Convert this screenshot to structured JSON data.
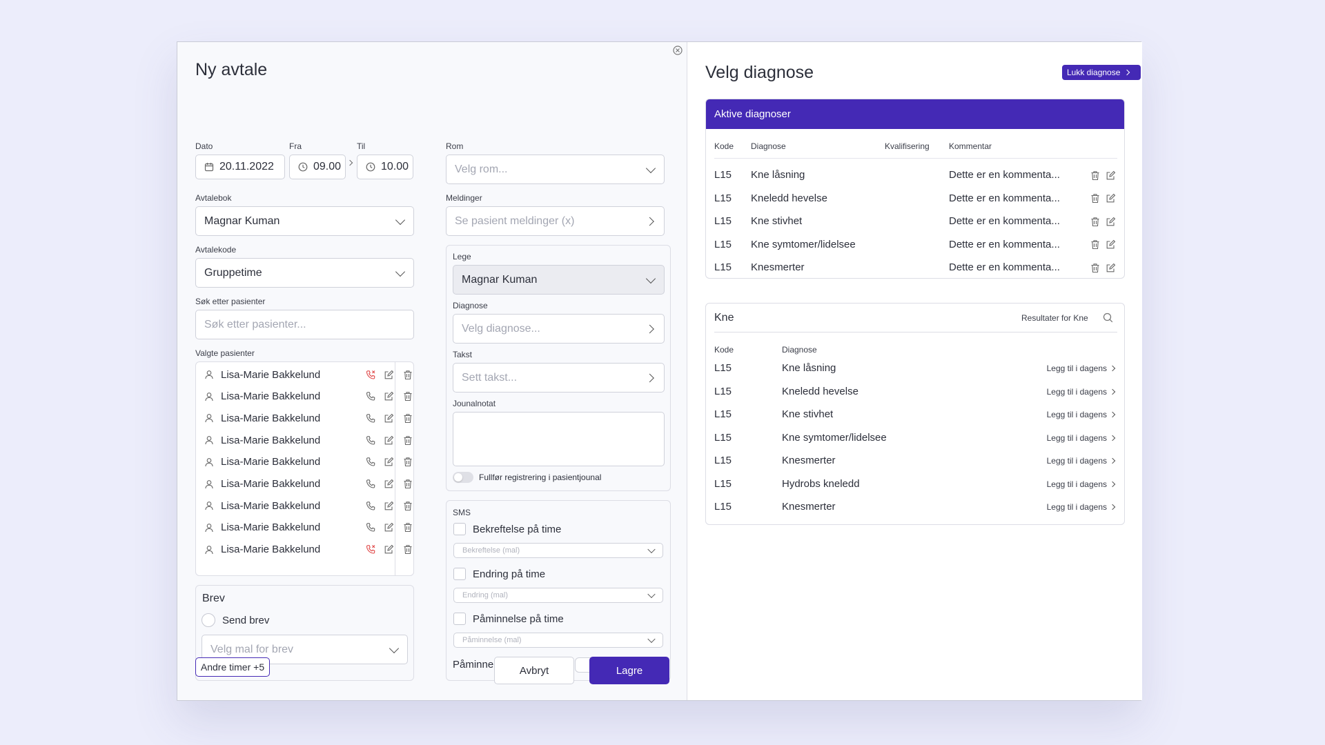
{
  "form": {
    "title": "Ny avtale",
    "date_label": "Dato",
    "date_value": "20.11.2022",
    "from_label": "Fra",
    "from_value": "09.00",
    "to_label": "Til",
    "to_value": "10.00",
    "appointment_book_label": "Avtalebok",
    "appointment_book_value": "Magnar Kuman",
    "appointment_code_label": "Avtalekode",
    "appointment_code_value": "Gruppetime",
    "search_patients_label": "Søk etter pasienter",
    "search_patients_placeholder": "Søk etter pasienter...",
    "selected_patients_label": "Valgte pasienter",
    "patients": [
      {
        "name": "Lisa-Marie Bakkelund",
        "phone_status": "blocked"
      },
      {
        "name": "Lisa-Marie Bakkelund",
        "phone_status": "ok"
      },
      {
        "name": "Lisa-Marie Bakkelund",
        "phone_status": "ok"
      },
      {
        "name": "Lisa-Marie Bakkelund",
        "phone_status": "ok"
      },
      {
        "name": "Lisa-Marie Bakkelund",
        "phone_status": "ok"
      },
      {
        "name": "Lisa-Marie Bakkelund",
        "phone_status": "ok"
      },
      {
        "name": "Lisa-Marie Bakkelund",
        "phone_status": "ok"
      },
      {
        "name": "Lisa-Marie Bakkelund",
        "phone_status": "ok"
      },
      {
        "name": "Lisa-Marie Bakkelund",
        "phone_status": "blocked"
      }
    ],
    "letter_title": "Brev",
    "send_letter_label": "Send brev",
    "letter_template_placeholder": "Velg mal for brev",
    "other_appointments_label": "Andre timer +5",
    "room_label": "Rom",
    "room_placeholder": "Velg rom...",
    "messages_label": "Meldinger",
    "messages_placeholder": "Se pasient meldinger (x)",
    "doctor_label": "Lege",
    "doctor_value": "Magnar Kuman",
    "diagnosis_label": "Diagnose",
    "diagnosis_placeholder": "Velg diagnose...",
    "fee_label": "Takst",
    "fee_placeholder": "Sett takst...",
    "journal_label": "Jounalnotat",
    "complete_registration_label": "Fullfør registrering i pasientjounal",
    "sms_label": "SMS",
    "sms_confirmation_label": "Bekreftelse på time",
    "sms_confirmation_template": "Bekreftelse (mal)",
    "sms_change_label": "Endring på time",
    "sms_change_template": "Endring (mal)",
    "sms_reminder_label": "Påminnelse på time",
    "sms_reminder_template": "Påminnelse (mal)",
    "reminder_days_label": "Påminnelse antall dager",
    "cancel_label": "Avbryt",
    "save_label": "Lagre"
  },
  "diagnosis_panel": {
    "title": "Velg diagnose",
    "close_label": "Lukk diagnose",
    "active_header": "Aktive diagnoser",
    "columns": {
      "code": "Kode",
      "diagnosis": "Diagnose",
      "qualification": "Kvalifisering",
      "comment": "Kommentar"
    },
    "active": [
      {
        "code": "L15",
        "diagnosis": "Kne låsning",
        "qualification": "",
        "comment": "Dette er en kommenta..."
      },
      {
        "code": "L15",
        "diagnosis": "Kneledd hevelse",
        "qualification": "",
        "comment": "Dette er en kommenta..."
      },
      {
        "code": "L15",
        "diagnosis": "Kne stivhet",
        "qualification": "",
        "comment": "Dette er en kommenta..."
      },
      {
        "code": "L15",
        "diagnosis": "Kne symtomer/lidelsee",
        "qualification": "",
        "comment": "Dette er en kommenta..."
      },
      {
        "code": "L15",
        "diagnosis": "Knesmerter",
        "qualification": "",
        "comment": "Dette er en kommenta..."
      }
    ],
    "search_value": "Kne",
    "results_for_label": "Resultater for Kne",
    "result_columns": {
      "code": "Kode",
      "diagnosis": "Diagnose"
    },
    "add_label": "Legg til i dagens",
    "results": [
      {
        "code": "L15",
        "diagnosis": "Kne låsning"
      },
      {
        "code": "L15",
        "diagnosis": "Kneledd hevelse"
      },
      {
        "code": "L15",
        "diagnosis": "Kne stivhet"
      },
      {
        "code": "L15",
        "diagnosis": "Kne symtomer/lidelsee"
      },
      {
        "code": "L15",
        "diagnosis": "Knesmerter"
      },
      {
        "code": "L15",
        "diagnosis": "Hydrobs kneledd"
      },
      {
        "code": "L15",
        "diagnosis": "Knesmerter"
      }
    ]
  },
  "colors": {
    "accent": "#4429b5",
    "danger": "#e04848"
  }
}
